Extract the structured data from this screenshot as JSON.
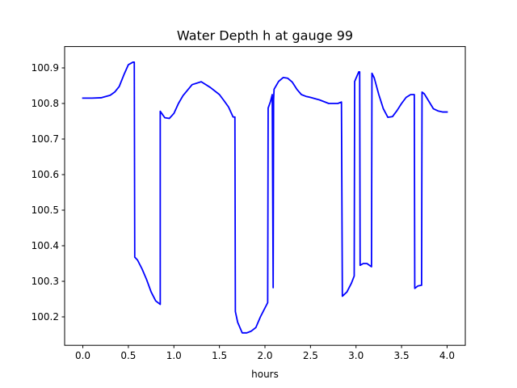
{
  "chart_data": {
    "type": "line",
    "title": "Water Depth h at gauge 99",
    "xlabel": "hours",
    "ylabel": "",
    "xlim": [
      -0.2,
      4.2
    ],
    "ylim": [
      100.12,
      100.96
    ],
    "xticks": [
      0.0,
      0.5,
      1.0,
      1.5,
      2.0,
      2.5,
      3.0,
      3.5,
      4.0
    ],
    "xtick_labels": [
      "0.0",
      "0.5",
      "1.0",
      "1.5",
      "2.0",
      "2.5",
      "3.0",
      "3.5",
      "4.0"
    ],
    "yticks": [
      100.2,
      100.3,
      100.4,
      100.5,
      100.6,
      100.7,
      100.8,
      100.9
    ],
    "ytick_labels": [
      "100.2",
      "100.3",
      "100.4",
      "100.5",
      "100.6",
      "100.7",
      "100.8",
      "100.9"
    ],
    "grid": false,
    "series": [
      {
        "color": "#0000ff",
        "x": [
          0.0,
          0.1,
          0.2,
          0.3,
          0.35,
          0.4,
          0.45,
          0.5,
          0.55,
          0.565,
          0.57,
          0.6,
          0.65,
          0.7,
          0.75,
          0.8,
          0.85,
          0.85,
          0.9,
          0.95,
          1.0,
          1.05,
          1.1,
          1.2,
          1.3,
          1.4,
          1.5,
          1.55,
          1.6,
          1.65,
          1.67,
          1.675,
          1.7,
          1.75,
          1.8,
          1.85,
          1.9,
          1.95,
          2.0,
          2.03,
          2.035,
          2.06,
          2.08,
          2.09,
          2.095,
          2.1,
          2.15,
          2.2,
          2.25,
          2.3,
          2.35,
          2.4,
          2.45,
          2.5,
          2.6,
          2.7,
          2.75,
          2.8,
          2.84,
          2.85,
          2.9,
          2.95,
          2.98,
          2.985,
          3.03,
          3.04,
          3.045,
          3.08,
          3.12,
          3.17,
          3.175,
          3.2,
          3.25,
          3.3,
          3.35,
          3.4,
          3.45,
          3.5,
          3.55,
          3.6,
          3.64,
          3.645,
          3.68,
          3.72,
          3.725,
          3.75,
          3.8,
          3.85,
          3.9,
          3.95,
          4.0
        ],
        "y": [
          100.815,
          100.815,
          100.816,
          100.823,
          100.832,
          100.848,
          100.88,
          100.909,
          100.916,
          100.916,
          100.368,
          100.36,
          100.335,
          100.305,
          100.27,
          100.245,
          100.235,
          100.778,
          100.76,
          100.758,
          100.772,
          100.8,
          100.822,
          100.853,
          100.861,
          100.845,
          100.825,
          100.808,
          100.79,
          100.762,
          100.762,
          100.215,
          100.185,
          100.155,
          100.155,
          100.16,
          100.17,
          100.2,
          100.225,
          100.24,
          100.787,
          100.805,
          100.825,
          100.282,
          100.81,
          100.84,
          100.862,
          100.873,
          100.871,
          100.86,
          100.84,
          100.825,
          100.82,
          100.817,
          100.81,
          100.8,
          100.8,
          100.8,
          100.804,
          100.258,
          100.27,
          100.295,
          100.315,
          100.862,
          100.889,
          100.889,
          100.345,
          100.35,
          100.35,
          100.341,
          100.885,
          100.872,
          100.825,
          100.785,
          100.761,
          100.763,
          100.78,
          100.8,
          100.817,
          100.825,
          100.825,
          100.28,
          100.287,
          100.289,
          100.832,
          100.827,
          100.806,
          100.785,
          100.779,
          100.776,
          100.776
        ]
      }
    ]
  }
}
